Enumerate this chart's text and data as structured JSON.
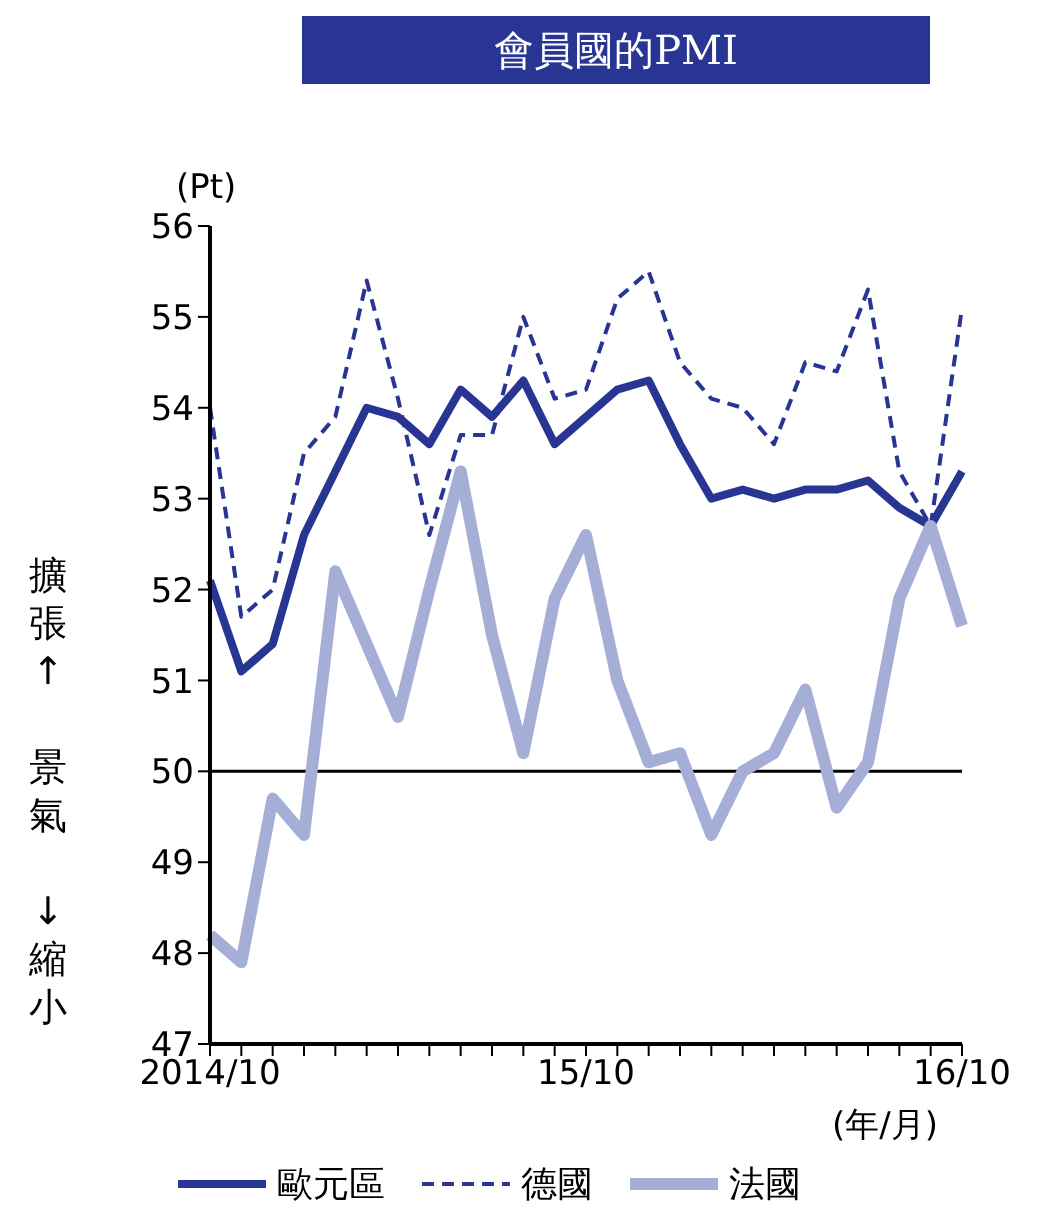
{
  "chart_data": {
    "type": "line",
    "title": "會員國的PMI",
    "ylabel": "擴張↑　景氣　↓縮小",
    "xlabel": "(年/月)",
    "annotations": [
      "(Pt)"
    ],
    "categories": [
      "2014/10",
      null,
      null,
      null,
      null,
      null,
      null,
      null,
      null,
      null,
      null,
      null,
      "15/10",
      null,
      null,
      null,
      null,
      null,
      null,
      null,
      null,
      null,
      null,
      null,
      "16/10"
    ],
    "series": [
      {
        "name": "歐元區",
        "color": "#283593",
        "line_style": "solid",
        "values": [
          52.1,
          51.1,
          51.4,
          52.6,
          53.3,
          54.0,
          53.9,
          53.6,
          54.2,
          53.9,
          54.3,
          53.6,
          53.9,
          54.2,
          54.3,
          53.6,
          53.0,
          53.1,
          53.0,
          53.1,
          53.1,
          53.2,
          52.9,
          52.7,
          53.3
        ]
      },
      {
        "name": "德國",
        "color": "#283593",
        "line_style": "dashed",
        "values": [
          54.0,
          51.7,
          52.0,
          53.5,
          53.9,
          55.4,
          54.1,
          52.6,
          53.7,
          53.7,
          55.0,
          54.1,
          54.2,
          55.2,
          55.5,
          54.5,
          54.1,
          54.0,
          53.6,
          54.5,
          54.4,
          55.3,
          53.3,
          52.7,
          55.1
        ]
      },
      {
        "name": "法國",
        "color": "#a4aed6",
        "line_style": "solid",
        "values": [
          48.2,
          47.9,
          49.7,
          49.3,
          52.2,
          51.4,
          50.6,
          52.0,
          53.3,
          51.5,
          50.2,
          51.9,
          52.6,
          51.0,
          50.1,
          50.2,
          49.3,
          50.0,
          50.2,
          50.9,
          49.6,
          50.1,
          51.9,
          52.7,
          51.6
        ]
      }
    ],
    "ylim": [
      47,
      56
    ],
    "yticks": [
      47,
      48,
      49,
      50,
      51,
      52,
      53,
      54,
      55,
      56
    ],
    "ref_lines": [
      {
        "axis": "y",
        "value": 50,
        "color": "#000000"
      }
    ],
    "grid": false,
    "legend": "bottom",
    "marker": "none"
  }
}
